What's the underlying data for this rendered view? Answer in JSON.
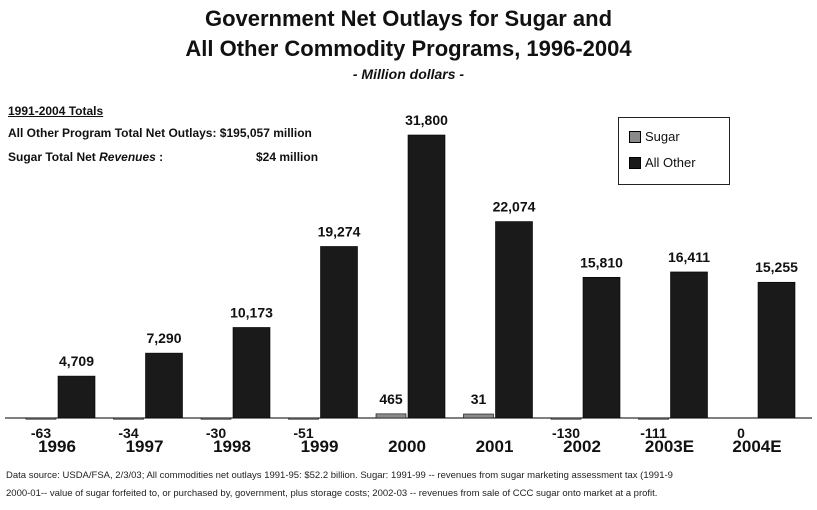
{
  "chart_data": {
    "type": "bar",
    "title": "Government Net Outlays for Sugar and",
    "title_line2": "All Other Commodity Programs, 1996-2004",
    "subtitle": "- Million dollars -",
    "categories": [
      "1996",
      "1997",
      "1998",
      "1999",
      "2000",
      "2001",
      "2002",
      "2003E",
      "2004E"
    ],
    "series": [
      {
        "name": "Sugar",
        "values": [
          -63,
          -34,
          -30,
          -51,
          465,
          31,
          -130,
          -111,
          0
        ],
        "labels": [
          "-63",
          "-34",
          "-30",
          "-51",
          "465",
          "31",
          "-130",
          "-111",
          "0"
        ],
        "color": "#8a8a8a"
      },
      {
        "name": "All Other",
        "values": [
          4709,
          7290,
          10173,
          19274,
          31800,
          22074,
          15810,
          16411,
          15255
        ],
        "labels": [
          "4,709",
          "7,290",
          "10,173",
          "19,274",
          "31,800",
          "22,074",
          "15,810",
          "16,411",
          "15,255"
        ],
        "color": "#1a1a1a"
      }
    ],
    "ylim": [
      -1500,
      32000
    ],
    "grid": false,
    "legend": "top-right"
  },
  "totals": {
    "heading": "1991-2004 Totals",
    "row1": "All Other Program Total Net Outlays: $195,057 million",
    "row2_label": "Sugar Total Net ",
    "row2_label_italic": "Revenues",
    "row2_colon": " :",
    "row2_value": "$24 million"
  },
  "legend": {
    "sugar": "Sugar",
    "other": "All Other"
  },
  "footer": {
    "line1": "Data source: USDA/FSA, 2/3/03; All commodities net outlays 1991-95: $52.2 billion. Sugar: 1991-99 -- revenues from sugar marketing assessment tax (1991-9",
    "line2": "2000-01-- value of sugar forfeited to, or purchased by, government, plus storage costs; 2002-03 -- revenues from sale of CCC sugar onto market at a profit."
  }
}
